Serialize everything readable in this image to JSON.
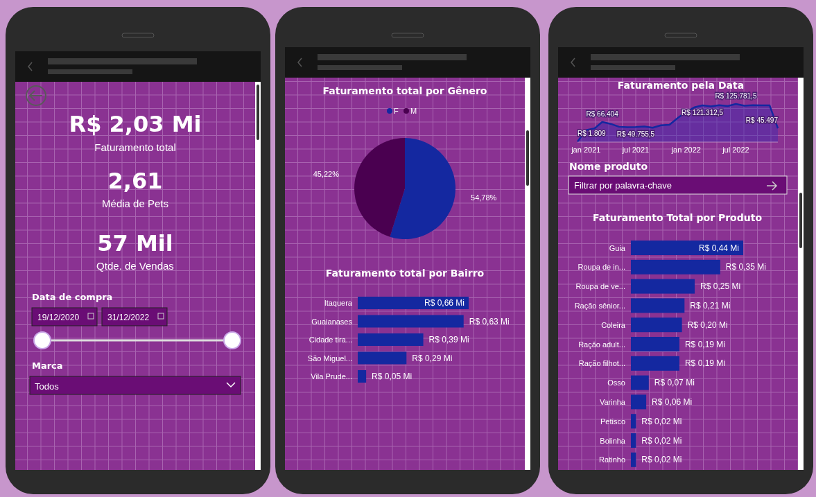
{
  "chart_data": [
    {
      "type": "other",
      "annotations": [
        "R$ 2,03 Mi",
        "Faturamento total",
        "2,61",
        "Média de Pets",
        "57 Mil",
        "Qtde. de Vendas"
      ]
    },
    {
      "type": "other",
      "annotations": [
        "Data de compra",
        "19/12/2020",
        "31/12/2022",
        "Marca",
        "Todos"
      ]
    },
    {
      "type": "pie",
      "title": "Faturamento total por Gênero",
      "categories": [
        "F",
        "M"
      ],
      "values": [
        54.78,
        45.22
      ],
      "colors": [
        "#1428a0",
        "#4a0050"
      ],
      "value_labels": [
        "54,78%",
        "45,22%"
      ],
      "legend": "top"
    },
    {
      "type": "bar",
      "orientation": "horizontal",
      "title": "Faturamento total por Bairro",
      "categories": [
        "Itaquera",
        "Guaianases",
        "Cidade tira...",
        "São Miguel...",
        "Vila Prude..."
      ],
      "values": [
        0.66,
        0.63,
        0.39,
        0.29,
        0.05
      ],
      "color": "#1428a0",
      "value_labels": [
        "R$ 0,66 Mi",
        "R$ 0,63 Mi",
        "R$ 0,39 Mi",
        "R$ 0,29 Mi",
        "R$ 0,05 Mi"
      ]
    },
    {
      "type": "area",
      "title": "Faturamento pela Data",
      "x": [
        "2020-12",
        "2021-01",
        "2021-02",
        "2021-03",
        "2021-04",
        "2021-05",
        "2021-06",
        "2021-07",
        "2021-08",
        "2021-09",
        "2021-10",
        "2021-11",
        "2021-12",
        "2022-01",
        "2022-02",
        "2022-03",
        "2022-04",
        "2022-05",
        "2022-06",
        "2022-07",
        "2022-08",
        "2022-09",
        "2022-10",
        "2022-11",
        "2022-12"
      ],
      "values": [
        1809,
        39300,
        45300,
        66404,
        60200,
        50600,
        49400,
        49755.5,
        51300,
        47400,
        55400,
        57300,
        79400,
        100000,
        115000,
        121312.5,
        118000,
        122000,
        119000,
        125781.5,
        120000,
        122000,
        121000,
        121000,
        45497
      ],
      "value_labels": [
        "R$ 1.809",
        null,
        null,
        "R$ 66.404",
        null,
        null,
        null,
        "R$ 49.755,5",
        null,
        null,
        null,
        null,
        null,
        null,
        null,
        "R$ 121.312,5",
        null,
        null,
        null,
        "R$ 125.781,5",
        null,
        null,
        null,
        null,
        "R$ 45.497"
      ],
      "color": "#1428a0",
      "xlim": [
        "2020-12",
        "2022-12"
      ],
      "xticks": [
        {
          "value": "2021-01",
          "label": "jan 2021"
        },
        {
          "value": "2021-07",
          "label": "jul 2021"
        },
        {
          "value": "2022-01",
          "label": "jan 2022"
        },
        {
          "value": "2022-07",
          "label": "jul 2022"
        }
      ]
    },
    {
      "type": "other",
      "annotations": [
        "Nome produto",
        "Filtrar por palavra-chave"
      ]
    },
    {
      "type": "bar",
      "orientation": "horizontal",
      "title": "Faturamento Total por Produto",
      "categories": [
        "Guia",
        "Roupa de in...",
        "Roupa de ve...",
        "Ração sênior...",
        "Coleira",
        "Ração adult...",
        "Ração filhot...",
        "Osso",
        "Varinha",
        "Petisco",
        "Bolinha",
        "Ratinho"
      ],
      "values": [
        0.44,
        0.35,
        0.25,
        0.21,
        0.2,
        0.19,
        0.19,
        0.07,
        0.06,
        0.02,
        0.02,
        0.02
      ],
      "color": "#1428a0",
      "value_labels": [
        "R$ 0,44 Mi",
        "R$ 0,35 Mi",
        "R$ 0,25 Mi",
        "R$ 0,21 Mi",
        "R$ 0,20 Mi",
        "R$ 0,19 Mi",
        "R$ 0,19 Mi",
        "R$ 0,07 Mi",
        "R$ 0,06 Mi",
        "R$ 0,02 Mi",
        "R$ 0,02 Mi",
        "R$ 0,02 Mi"
      ]
    }
  ]
}
